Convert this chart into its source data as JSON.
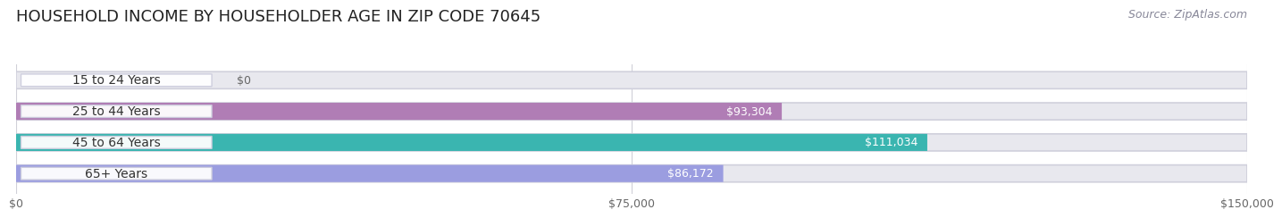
{
  "title": "HOUSEHOLD INCOME BY HOUSEHOLDER AGE IN ZIP CODE 70645",
  "source": "Source: ZipAtlas.com",
  "categories": [
    "15 to 24 Years",
    "25 to 44 Years",
    "45 to 64 Years",
    "65+ Years"
  ],
  "values": [
    0,
    93304,
    111034,
    86172
  ],
  "labels": [
    "$0",
    "$93,304",
    "$111,034",
    "$86,172"
  ],
  "bar_colors": [
    "#a8bce0",
    "#b07db5",
    "#3ab5b0",
    "#9b9de0"
  ],
  "bar_bg_color": "#e8e8ee",
  "xlim": [
    0,
    150000
  ],
  "xticks": [
    0,
    75000,
    150000
  ],
  "xtick_labels": [
    "$0",
    "$75,000",
    "$150,000"
  ],
  "background_color": "#ffffff",
  "title_fontsize": 13,
  "source_fontsize": 9,
  "label_fontsize": 9,
  "category_fontsize": 10,
  "label_outside_color": "#555555",
  "label_inside_color": "#ffffff",
  "zero_label_color": "#666666"
}
